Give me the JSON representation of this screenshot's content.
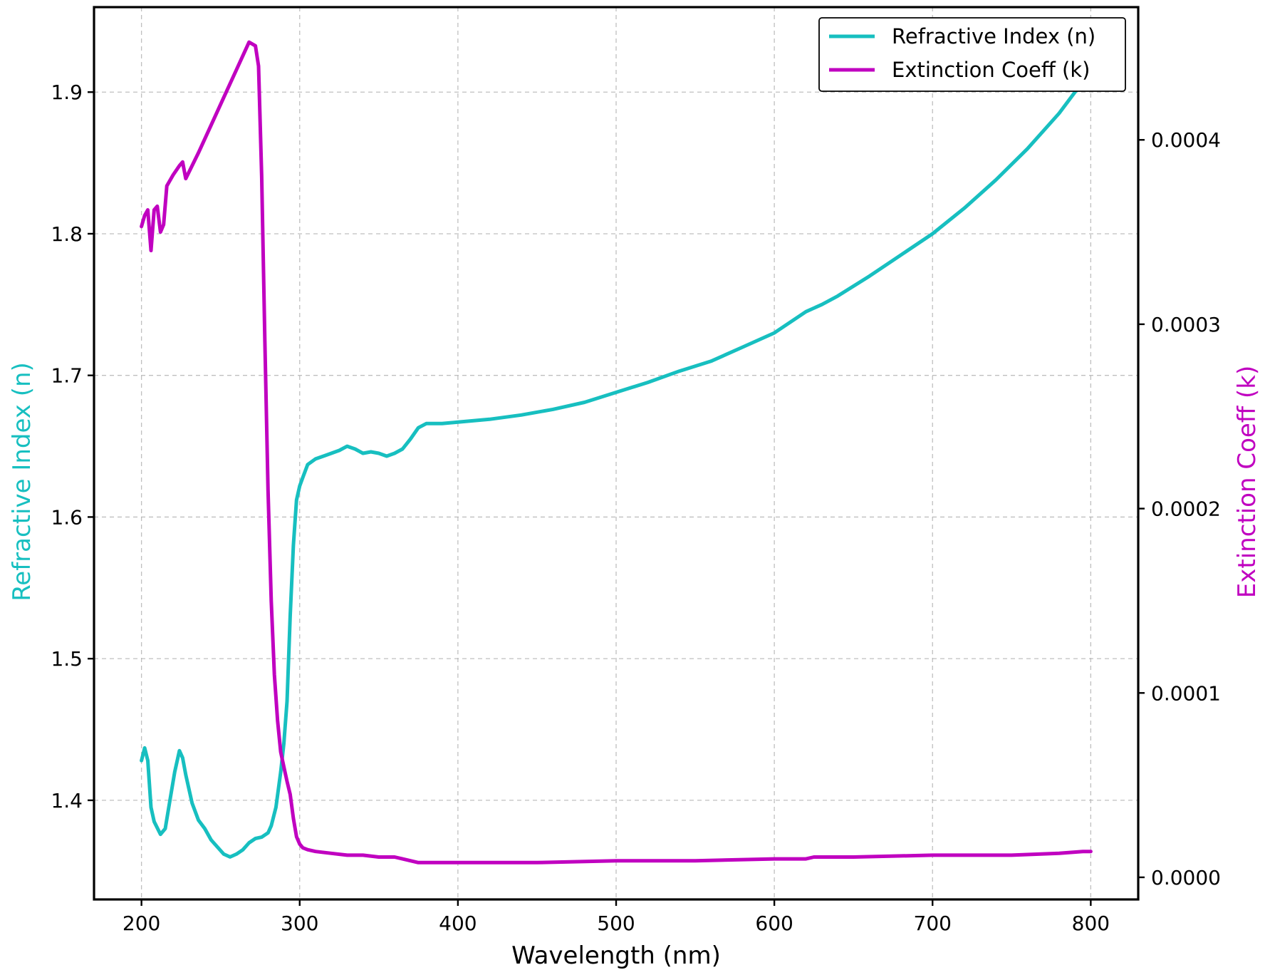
{
  "chart_data": {
    "type": "line",
    "title": "",
    "xlabel": "Wavelength (nm)",
    "ylabel_left": "Refractive Index (n)",
    "ylabel_right": "Extinction Coeff (k)",
    "xlim": [
      170,
      830
    ],
    "ylim_left": [
      1.33,
      1.96
    ],
    "ylim_right": [
      -1.2e-05,
      0.000472
    ],
    "x_ticks": [
      200,
      300,
      400,
      500,
      600,
      700,
      800
    ],
    "y_left_ticks": [
      1.4,
      1.5,
      1.6,
      1.7,
      1.8,
      1.9
    ],
    "y_right_ticks": [
      0.0,
      0.0001,
      0.0002,
      0.0003,
      0.0004
    ],
    "y_left_tick_labels": [
      "1.4",
      "1.5",
      "1.6",
      "1.7",
      "1.8",
      "1.9"
    ],
    "y_right_tick_labels": [
      "0.0000",
      "0.0001",
      "0.0002",
      "0.0003",
      "0.0004"
    ],
    "x_tick_labels": [
      "200",
      "300",
      "400",
      "500",
      "600",
      "700",
      "800"
    ],
    "grid": true,
    "legend_position": "top-right",
    "colors": {
      "n": "#17bfc0",
      "k": "#c000c0"
    },
    "series": [
      {
        "name": "Refractive Index (n)",
        "axis": "left",
        "color": "#17bfc0",
        "x": [
          200,
          202,
          204,
          206,
          208,
          212,
          215,
          218,
          221,
          224,
          226,
          228,
          232,
          236,
          240,
          244,
          248,
          252,
          256,
          258,
          260,
          264,
          268,
          272,
          276,
          280,
          282,
          285,
          288,
          290,
          292,
          294,
          296,
          298,
          300,
          302,
          305,
          310,
          315,
          320,
          325,
          330,
          335,
          340,
          345,
          350,
          355,
          360,
          365,
          370,
          375,
          380,
          390,
          400,
          420,
          440,
          460,
          480,
          500,
          520,
          540,
          560,
          580,
          600,
          620,
          630,
          640,
          660,
          680,
          700,
          720,
          740,
          760,
          780,
          790,
          800
        ],
        "y": [
          1.428,
          1.437,
          1.428,
          1.395,
          1.385,
          1.376,
          1.38,
          1.4,
          1.42,
          1.435,
          1.43,
          1.418,
          1.398,
          1.386,
          1.38,
          1.372,
          1.367,
          1.362,
          1.36,
          1.361,
          1.362,
          1.365,
          1.37,
          1.373,
          1.374,
          1.377,
          1.382,
          1.395,
          1.42,
          1.44,
          1.47,
          1.53,
          1.58,
          1.612,
          1.622,
          1.628,
          1.637,
          1.641,
          1.643,
          1.645,
          1.647,
          1.65,
          1.648,
          1.645,
          1.646,
          1.645,
          1.643,
          1.645,
          1.648,
          1.655,
          1.663,
          1.666,
          1.666,
          1.667,
          1.669,
          1.672,
          1.676,
          1.681,
          1.688,
          1.695,
          1.703,
          1.71,
          1.72,
          1.73,
          1.745,
          1.75,
          1.756,
          1.77,
          1.785,
          1.8,
          1.818,
          1.838,
          1.86,
          1.885,
          1.9,
          1.913
        ]
      },
      {
        "name": "Extinction Coeff (k)",
        "axis": "right",
        "color": "#c000c0",
        "x": [
          200,
          202,
          204,
          206,
          208,
          210,
          212,
          214,
          216,
          220,
          224,
          226,
          228,
          236,
          244,
          252,
          260,
          268,
          272,
          274,
          276,
          278,
          280,
          282,
          284,
          286,
          288,
          290,
          292,
          294,
          296,
          298,
          300,
          302,
          305,
          310,
          320,
          330,
          340,
          350,
          360,
          365,
          370,
          375,
          380,
          390,
          400,
          420,
          450,
          500,
          550,
          600,
          620,
          625,
          650,
          700,
          750,
          780,
          795,
          800
        ],
        "y": [
          0.000353,
          0.000359,
          0.000362,
          0.00034,
          0.000362,
          0.000364,
          0.00035,
          0.000354,
          0.000375,
          0.000381,
          0.000386,
          0.000388,
          0.000379,
          0.000393,
          0.000408,
          0.000423,
          0.000438,
          0.000453,
          0.000451,
          0.00044,
          0.00038,
          0.00029,
          0.00021,
          0.00015,
          0.00011,
          8.5e-05,
          6.8e-05,
          6e-05,
          5.2e-05,
          4.5e-05,
          3.2e-05,
          2.2e-05,
          1.8e-05,
          1.6e-05,
          1.5e-05,
          1.4e-05,
          1.3e-05,
          1.2e-05,
          1.2e-05,
          1.1e-05,
          1.1e-05,
          1e-05,
          9e-06,
          8e-06,
          8e-06,
          8e-06,
          8e-06,
          8e-06,
          8e-06,
          9e-06,
          9e-06,
          1e-05,
          1e-05,
          1.1e-05,
          1.1e-05,
          1.2e-05,
          1.2e-05,
          1.3e-05,
          1.4e-05,
          1.4e-05
        ]
      }
    ]
  }
}
